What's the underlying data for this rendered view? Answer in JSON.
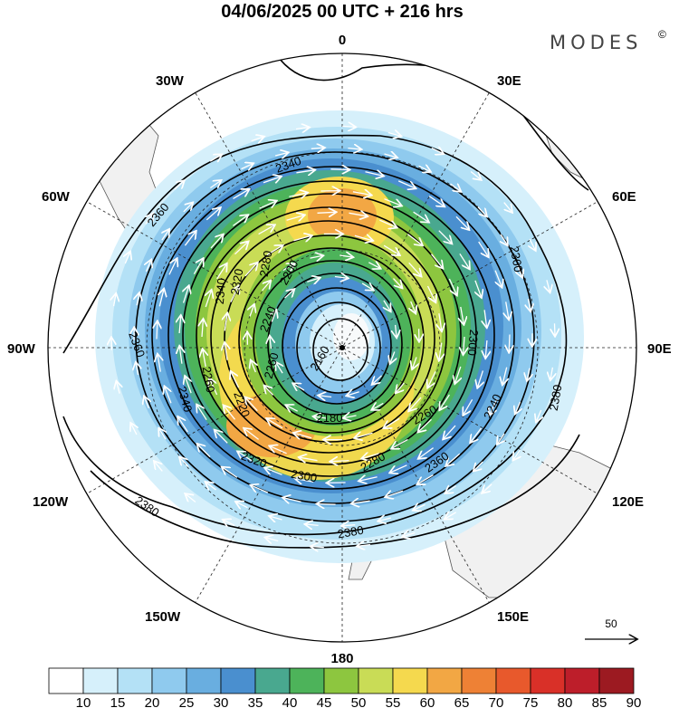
{
  "title": "04/06/2025  00 UTC  + 216 hrs",
  "brand": "MODES",
  "brand_mark": "©",
  "longitude_labels": {
    "top": "0",
    "bottom": "180",
    "left": "90W",
    "right": "90E",
    "w30": "30W",
    "w60": "60W",
    "w120": "120W",
    "w150": "150W",
    "e30": "30E",
    "e60": "60E",
    "e120": "120E",
    "e150": "150E"
  },
  "contour_labels": [
    "2160",
    "2180",
    "2200",
    "2220",
    "2240",
    "2240",
    "2260",
    "2260",
    "2260",
    "2280",
    "2280",
    "2300",
    "2300",
    "2320",
    "2320",
    "2340",
    "2340",
    "2340",
    "2360",
    "2360",
    "2360",
    "2360",
    "2380",
    "2380",
    "2380"
  ],
  "reference_vector_label": "50",
  "colorbar": {
    "ticks": [
      "10",
      "15",
      "20",
      "25",
      "30",
      "35",
      "40",
      "45",
      "50",
      "55",
      "60",
      "65",
      "70",
      "75",
      "80",
      "85",
      "90"
    ],
    "colors": [
      "#ffffff",
      "#d6f0fb",
      "#b4e1f6",
      "#8fcaee",
      "#69aee0",
      "#4a8fcf",
      "#49a88f",
      "#4db35a",
      "#8dc63f",
      "#c9dc56",
      "#f5d94e",
      "#f2a744",
      "#ee8135",
      "#e8592c",
      "#d93028",
      "#bd1e2a",
      "#9c1a21"
    ]
  }
}
